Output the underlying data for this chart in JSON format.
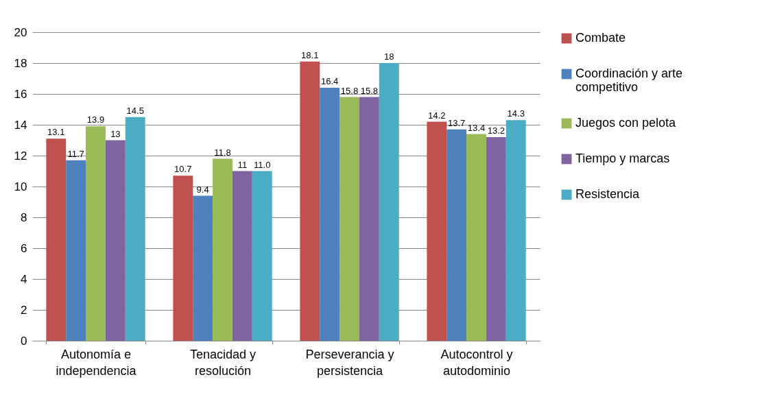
{
  "chart_data": {
    "type": "bar",
    "categories": [
      "Autonomía e independencia",
      "Tenacidad y resolución",
      "Perseverancia y persistencia",
      "Autocontrol y autodominio"
    ],
    "series": [
      {
        "name": "Combate",
        "color": "#c0504d",
        "values": [
          13.1,
          10.7,
          18.1,
          14.2
        ],
        "value_labels": [
          "13.1",
          "10.7",
          "18.1",
          "14.2"
        ]
      },
      {
        "name": "Coordinación y arte competitivo",
        "color": "#4f81bd",
        "values": [
          11.7,
          9.4,
          16.4,
          13.7
        ],
        "value_labels": [
          "11.7",
          "9.4",
          "16.4",
          "13.7"
        ]
      },
      {
        "name": "Juegos con pelota",
        "color": "#9bbb59",
        "values": [
          13.9,
          11.8,
          15.8,
          13.4
        ],
        "value_labels": [
          "13.9",
          "11.8",
          "15.8",
          "13.4"
        ]
      },
      {
        "name": "Tiempo y marcas",
        "color": "#8064a2",
        "values": [
          13,
          11,
          15.8,
          13.2
        ],
        "value_labels": [
          "13",
          "11",
          "15.8",
          "13.2"
        ]
      },
      {
        "name": "Resistencia",
        "color": "#4bacc6",
        "values": [
          14.5,
          11.0,
          18,
          14.3
        ],
        "value_labels": [
          "14.5",
          "11.0",
          "18",
          "14.3"
        ]
      }
    ],
    "ylim": [
      0,
      20
    ],
    "yticks": [
      0,
      2,
      4,
      6,
      8,
      10,
      12,
      14,
      16,
      18,
      20
    ],
    "grid": "y",
    "legend": "right"
  }
}
